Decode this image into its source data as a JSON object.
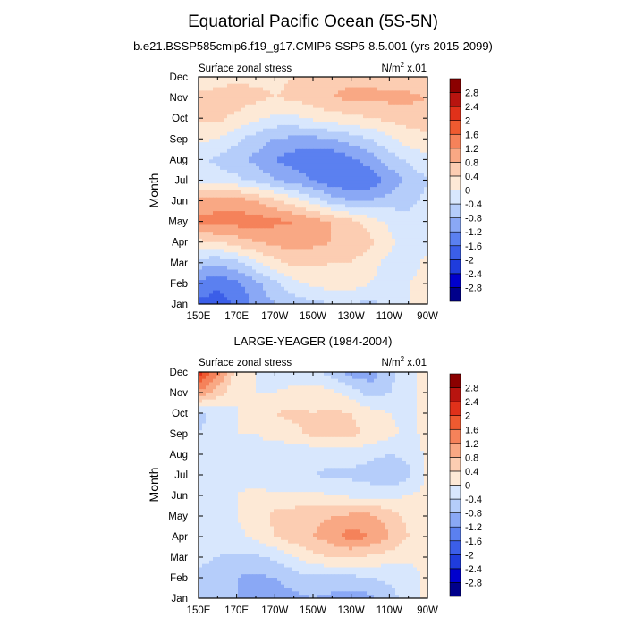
{
  "figure": {
    "title": "Equatorial Pacific Ocean (5S-5N)",
    "subtitle": "b.e21.BSSP585cmip6.f19_g17.CMIP6-SSP5-8.5.001 (yrs 2015-2099)",
    "second_title": "LARGE-YEAGER (1984-2004)"
  },
  "chart_data": [
    {
      "type": "heatmap",
      "panel": "model",
      "left_label": "Surface zonal stress",
      "right_label": "N/m",
      "right_label_sup": "2",
      "right_label_suffix": " x.01",
      "ylabel": "Month",
      "x_ticks": [
        "150E",
        "170E",
        "170W",
        "150W",
        "130W",
        "110W",
        "90W"
      ],
      "y_ticks": [
        "Jan",
        "Feb",
        "Mar",
        "Apr",
        "May",
        "Jun",
        "Jul",
        "Aug",
        "Sep",
        "Oct",
        "Nov",
        "Dec"
      ],
      "x_lon_range": [
        150,
        270
      ],
      "colorbar_levels": [
        "2.8",
        "2.4",
        "2",
        "1.6",
        "1.2",
        "0.8",
        "0.4",
        "0",
        "-0.4",
        "-0.8",
        "-1.2",
        "-1.6",
        "-2",
        "-2.4",
        "-2.8"
      ],
      "field": [
        [
          -1.7,
          -1.8,
          -1.5,
          -1.1,
          -0.8,
          -0.6,
          -0.5,
          -0.4,
          -0.4,
          -0.5,
          -0.3,
          0.0,
          0.3
        ],
        [
          -1.3,
          -1.5,
          -1.3,
          -0.9,
          -0.5,
          -0.1,
          0.1,
          0.2,
          0.2,
          0.0,
          -0.1,
          0.0,
          0.2
        ],
        [
          -0.6,
          -0.7,
          -0.5,
          -0.1,
          0.3,
          0.5,
          0.5,
          0.4,
          0.4,
          0.1,
          -0.1,
          -0.2,
          0.1
        ],
        [
          0.3,
          0.4,
          0.6,
          0.8,
          0.9,
          1.0,
          0.9,
          0.8,
          0.8,
          0.5,
          0.1,
          -0.2,
          -0.1
        ],
        [
          1.3,
          1.4,
          1.4,
          1.4,
          1.3,
          1.2,
          1.0,
          0.8,
          0.5,
          0.2,
          -0.1,
          -0.3,
          -0.2
        ],
        [
          0.9,
          1.0,
          1.0,
          0.8,
          0.5,
          0.2,
          -0.2,
          -0.6,
          -0.8,
          -0.8,
          -0.6,
          -0.5,
          -0.3
        ],
        [
          -0.1,
          -0.2,
          -0.3,
          -0.5,
          -0.8,
          -1.0,
          -1.2,
          -1.5,
          -1.6,
          -1.5,
          -1.1,
          -0.7,
          -0.4
        ],
        [
          -0.3,
          -0.5,
          -0.7,
          -0.9,
          -1.2,
          -1.4,
          -1.5,
          -1.5,
          -1.3,
          -1.0,
          -0.6,
          -0.3,
          -0.1
        ],
        [
          0.1,
          0.0,
          -0.3,
          -0.6,
          -0.8,
          -0.9,
          -0.9,
          -0.8,
          -0.6,
          -0.4,
          -0.1,
          0.2,
          0.3
        ],
        [
          0.5,
          0.5,
          0.3,
          0.1,
          -0.1,
          -0.1,
          0.1,
          0.2,
          0.3,
          0.4,
          0.5,
          0.6,
          0.6
        ],
        [
          0.5,
          0.6,
          0.6,
          0.5,
          0.4,
          0.5,
          0.6,
          0.8,
          0.9,
          0.9,
          0.9,
          0.9,
          0.8
        ],
        [
          0.1,
          0.2,
          0.3,
          0.3,
          0.3,
          0.4,
          0.6,
          0.7,
          0.7,
          0.7,
          0.6,
          0.5,
          0.4
        ]
      ]
    },
    {
      "type": "heatmap",
      "panel": "observation",
      "left_label": "Surface zonal stress",
      "right_label": "N/m",
      "right_label_sup": "2",
      "right_label_suffix": " x.01",
      "ylabel": "Month",
      "x_ticks": [
        "150E",
        "170E",
        "170W",
        "150W",
        "130W",
        "110W",
        "90W"
      ],
      "y_ticks": [
        "Jan",
        "Feb",
        "Mar",
        "Apr",
        "May",
        "Jun",
        "Jul",
        "Aug",
        "Sep",
        "Oct",
        "Nov",
        "Dec"
      ],
      "x_lon_range": [
        150,
        270
      ],
      "colorbar_levels": [
        "2.8",
        "2.4",
        "2",
        "1.6",
        "1.2",
        "0.8",
        "0.4",
        "0",
        "-0.4",
        "-0.8",
        "-1.2",
        "-1.6",
        "-2",
        "-2.4",
        "-2.8"
      ],
      "field": [
        [
          -0.5,
          -0.6,
          -0.8,
          -0.9,
          -1.0,
          -0.9,
          -0.8,
          -0.9,
          -1.0,
          -0.9,
          -0.6,
          -0.2,
          0.1
        ],
        [
          -0.5,
          -0.6,
          -0.8,
          -0.9,
          -0.8,
          -0.6,
          -0.5,
          -0.5,
          -0.5,
          -0.4,
          -0.3,
          -0.2,
          0.1
        ],
        [
          -0.3,
          -0.4,
          -0.5,
          -0.5,
          -0.3,
          0.0,
          0.3,
          0.4,
          0.4,
          0.3,
          0.2,
          0.1,
          0.1
        ],
        [
          -0.2,
          -0.3,
          -0.1,
          0.1,
          0.4,
          0.6,
          0.8,
          1.0,
          1.4,
          1.2,
          0.8,
          0.4,
          0.1
        ],
        [
          -0.3,
          -0.2,
          0.0,
          0.2,
          0.5,
          0.6,
          0.7,
          0.8,
          0.9,
          0.9,
          0.6,
          0.3,
          0.1
        ],
        [
          -0.3,
          -0.2,
          0.0,
          0.1,
          0.1,
          0.1,
          0.1,
          0.0,
          -0.1,
          -0.1,
          -0.1,
          0.0,
          0.1
        ],
        [
          -0.3,
          -0.2,
          -0.1,
          -0.2,
          -0.4,
          -0.4,
          -0.4,
          -0.5,
          -0.5,
          -0.6,
          -0.8,
          -0.5,
          0.1
        ],
        [
          -0.3,
          -0.2,
          -0.1,
          -0.2,
          -0.3,
          -0.4,
          -0.3,
          -0.2,
          -0.2,
          -0.3,
          -0.4,
          -0.3,
          0.1
        ],
        [
          -0.4,
          -0.2,
          0.0,
          0.0,
          0.2,
          0.3,
          0.5,
          0.6,
          0.5,
          0.3,
          0.1,
          -0.1,
          0.1
        ],
        [
          -0.5,
          -0.3,
          0.0,
          0.1,
          0.4,
          0.5,
          0.4,
          0.5,
          0.4,
          0.2,
          0.0,
          -0.1,
          0.1
        ],
        [
          1.1,
          0.6,
          0.0,
          0.0,
          0.0,
          0.1,
          0.2,
          0.1,
          -0.2,
          -0.6,
          -0.4,
          -0.1,
          0.1
        ],
        [
          2.2,
          1.4,
          0.2,
          0.0,
          -0.2,
          -0.2,
          -0.3,
          -0.6,
          -1.0,
          -1.0,
          -0.6,
          -0.1,
          0.1
        ]
      ]
    }
  ],
  "colors": {
    "scale": [
      "#00008b",
      "#0000cd",
      "#1f3cdc",
      "#3b5ee8",
      "#5b80f0",
      "#8aa8f5",
      "#b5cdfa",
      "#d8e7fd",
      "#fde9d6",
      "#fccdb2",
      "#f9a884",
      "#f5825a",
      "#ef5a30",
      "#e0311a",
      "#b8140f",
      "#8b0000"
    ]
  }
}
